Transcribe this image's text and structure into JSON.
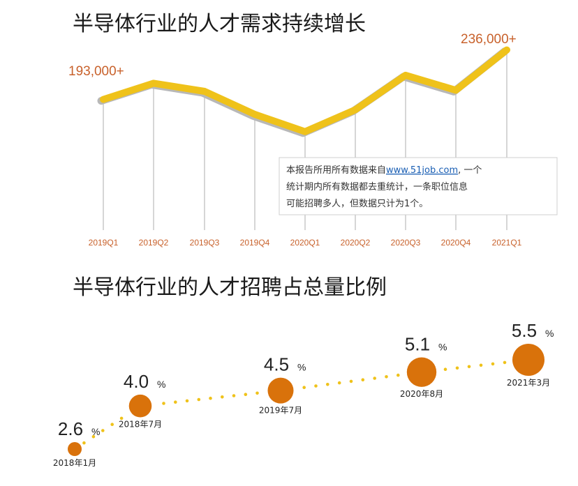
{
  "chart_data": [
    {
      "type": "line",
      "title": "半导体行业的人才需求持续增长",
      "categories": [
        "2019Q1",
        "2019Q2",
        "2019Q3",
        "2019Q4",
        "2020Q1",
        "2020Q2",
        "2020Q3",
        "2020Q4",
        "2021Q1"
      ],
      "values": [
        193000,
        207000,
        200000,
        180000,
        165000,
        184000,
        214000,
        201000,
        236000
      ],
      "ylim": [
        140000,
        240000
      ],
      "start_label": "193,000+",
      "end_label": "236,000+",
      "grid": false,
      "colors": {
        "line": "#efc21a",
        "line_shadow": "#b8b8b8",
        "drop_line": "#c4c4c4",
        "tick_label": "#c8612b"
      },
      "note": {
        "text_before_link": "本报告所用所有数据来自",
        "link_text": "www.51job.com",
        "text_after_link": ", 一个",
        "line2": "统计期内所有数据都去重统计，一条职位信息",
        "line3": "可能招聘多人，但数据只计为1个。"
      }
    },
    {
      "type": "scatter",
      "title": "半导体行业的人才招聘占总量比例",
      "categories": [
        "2018年1月",
        "2018年7月",
        "2019年7月",
        "2020年8月",
        "2021年3月"
      ],
      "values": [
        2.6,
        4.0,
        4.5,
        5.1,
        5.5
      ],
      "unit": "%",
      "grid": false,
      "colors": {
        "bubble": "#d9720b",
        "dots": "#efc21a",
        "value_text": "#222222"
      }
    }
  ]
}
